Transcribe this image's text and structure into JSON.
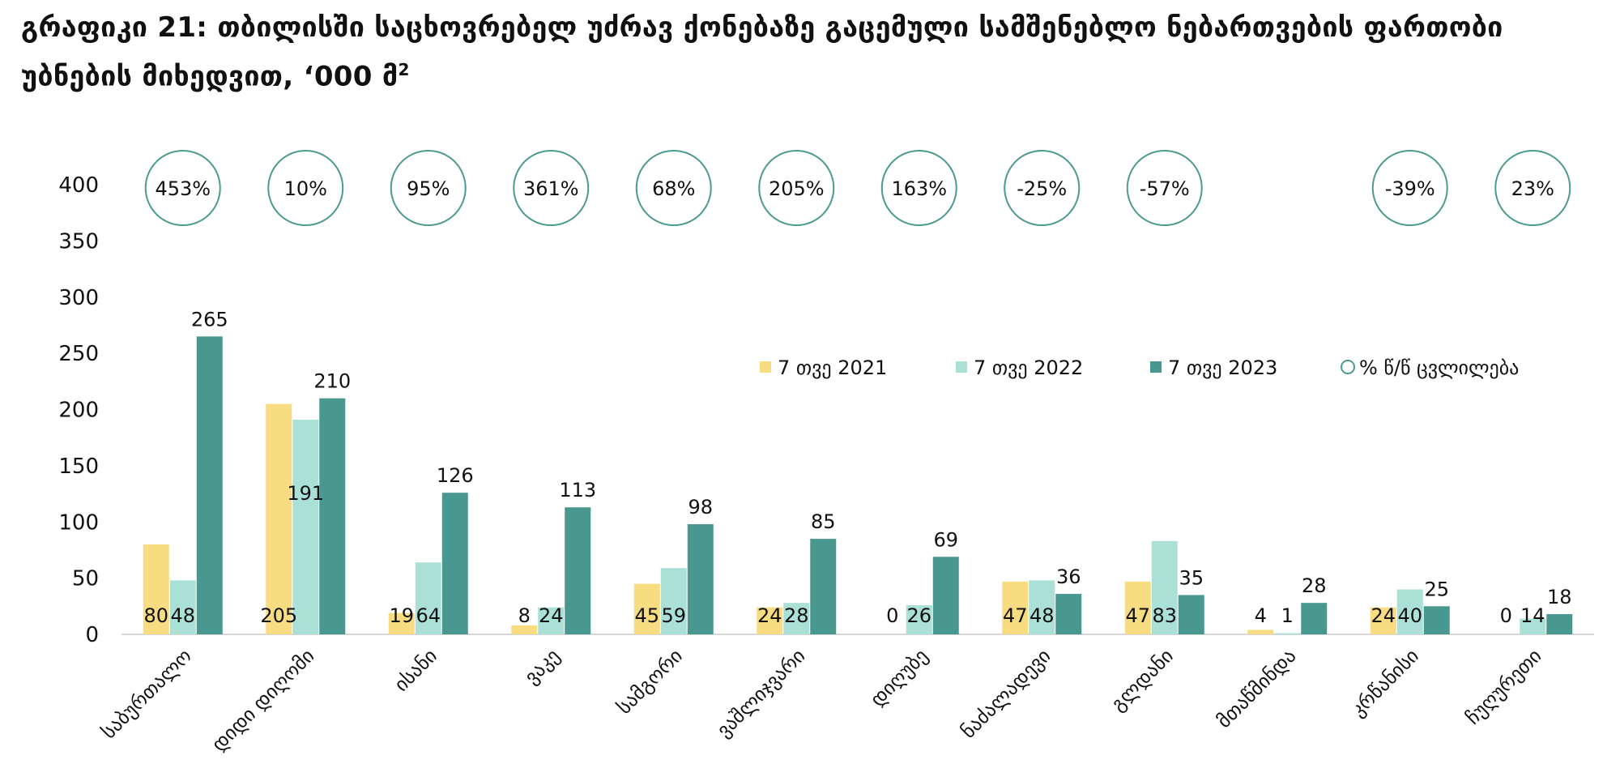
{
  "title": "გრაფიკი 21: თბილისში საცხოვრებელ უძრავ ქონებაზე გაცემული სამშენებლო ნებართვების ფართობი უბნების მიხედვით, ‘000 მ",
  "title_sup": "2",
  "chart_data": {
    "type": "bar",
    "categories": [
      "საბურთალო",
      "დიდი დიღომი",
      "ისანი",
      "ვაკე",
      "სამგორი",
      "ვაშლიჯვარი",
      "დიღუბე",
      "ნაძალადევი",
      "გლდანი",
      "მთაწმინდა",
      "კრწანისი",
      "ჩუღურეთი"
    ],
    "series": [
      {
        "name": "7 თვე 2021",
        "color": "#f7dc82",
        "values": [
          80,
          205,
          19,
          8,
          45,
          24,
          0,
          47,
          47,
          4,
          24,
          0
        ]
      },
      {
        "name": "7 თვე 2022",
        "color": "#abe0d6",
        "values": [
          48,
          191,
          64,
          24,
          59,
          28,
          26,
          48,
          83,
          1,
          40,
          14
        ]
      },
      {
        "name": "7 თვე 2023",
        "color": "#48988f",
        "values": [
          265,
          210,
          126,
          113,
          98,
          85,
          69,
          36,
          35,
          28,
          25,
          18
        ]
      }
    ],
    "yoy_change": [
      "453%",
      "10%",
      "95%",
      "361%",
      "68%",
      "205%",
      "163%",
      "-25%",
      "-57%",
      "",
      "-39%",
      "23%"
    ],
    "yoy_legend": "% წ/წ ცვლილება",
    "yticks": [
      0,
      50,
      100,
      150,
      200,
      250,
      300,
      350,
      400
    ],
    "ylim": [
      0,
      400
    ],
    "legend_position": "top-right",
    "grid": false
  }
}
